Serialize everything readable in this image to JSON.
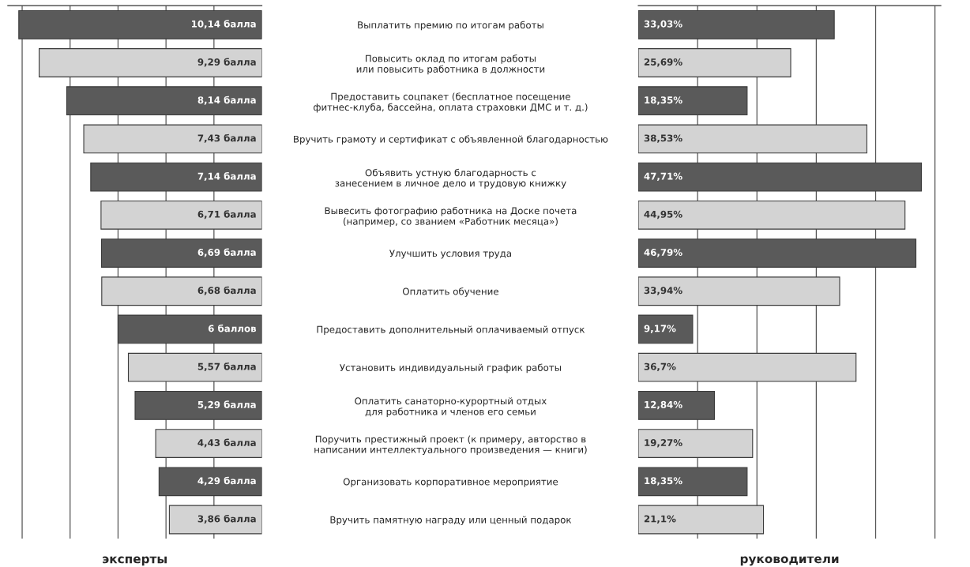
{
  "chart_data": [
    {
      "type": "bar",
      "orientation": "horizontal",
      "xlabel": "эксперты",
      "tick_labels": "y",
      "grid": "x",
      "xlim": [
        10.6,
        0
      ],
      "xticks": [
        {
          "value": 2,
          "label": null
        },
        {
          "value": 4,
          "label": null
        },
        {
          "value": 6,
          "label": null
        },
        {
          "value": 8,
          "label": null
        },
        {
          "value": 10,
          "label": null
        }
      ],
      "categories": [
        "Выплатить премию по итогам работы",
        "Повысить оклад по итогам работы или повысить работника в должности",
        "Предоставить соцпакет (бесплатное посещение фитнес-клуба, бассейна, оплата страховки ДМС и т. д.)",
        "Вручить грамоту и сертификат с объявленной благодарностью",
        "Объявить устную благодарность с занесением в личное дело и трудовую книжку",
        "Вывесить фотографию работника на Доске почета (например, со званием «Работник месяца»)",
        "Улучшить условия труда",
        "Оплатить обучение",
        "Предоставить дополнительный оплачиваемый отпуск",
        "Установить индивидуальный график работы",
        "Оплатить санаторно-курортный отдых для работника и членов его семьи",
        "Поручить престижный проект (к примеру, авторство в написании интеллектуального произведения — книги)",
        "Организовать корпоративное мероприятие",
        "Вручить памятную награду или ценный подарок"
      ],
      "values": [
        10.14,
        9.29,
        8.14,
        7.43,
        7.14,
        6.71,
        6.69,
        6.68,
        6,
        5.57,
        5.29,
        4.43,
        4.29,
        3.86
      ],
      "value_labels": [
        "10,14 балла",
        "9,29 балла",
        "8,14 балла",
        "7,43 балла",
        "7,14 балла",
        "6,71 балла",
        "6,69 балла",
        "6,68 балла",
        "6 баллов",
        "5,57 балла",
        "5,29 балла",
        "4,43 балла",
        "4,29 балла",
        "3,86 балла"
      ],
      "colors": [
        "#5a5a5a",
        "#d3d3d3",
        "#5a5a5a",
        "#d3d3d3",
        "#5a5a5a",
        "#d3d3d3",
        "#5a5a5a",
        "#d3d3d3",
        "#5a5a5a",
        "#d3d3d3",
        "#5a5a5a",
        "#d3d3d3",
        "#5a5a5a",
        "#d3d3d3"
      ]
    },
    {
      "type": "bar",
      "orientation": "horizontal",
      "xlabel": "руководители",
      "tick_labels": false,
      "grid": "x",
      "xlim": [
        0,
        51
      ],
      "xticks": [
        {
          "value": 10,
          "label": null
        },
        {
          "value": 20,
          "label": null
        },
        {
          "value": 30,
          "label": null
        },
        {
          "value": 40,
          "label": null
        },
        {
          "value": 50,
          "label": null
        }
      ],
      "values": [
        33.03,
        25.69,
        18.35,
        38.53,
        47.71,
        44.95,
        46.79,
        33.94,
        9.17,
        36.7,
        12.84,
        19.27,
        18.35,
        21.1
      ],
      "value_labels": [
        "33,03%",
        "25,69%",
        "18,35%",
        "38,53%",
        "47,71%",
        "44,95%",
        "46,79%",
        "33,94%",
        "9,17%",
        "36,7%",
        "12,84%",
        "19,27%",
        "18,35%",
        "21,1%"
      ],
      "colors": [
        "#5a5a5a",
        "#d3d3d3",
        "#5a5a5a",
        "#d3d3d3",
        "#5a5a5a",
        "#d3d3d3",
        "#5a5a5a",
        "#d3d3d3",
        "#5a5a5a",
        "#d3d3d3",
        "#5a5a5a",
        "#d3d3d3",
        "#5a5a5a",
        "#d3d3d3"
      ]
    }
  ]
}
